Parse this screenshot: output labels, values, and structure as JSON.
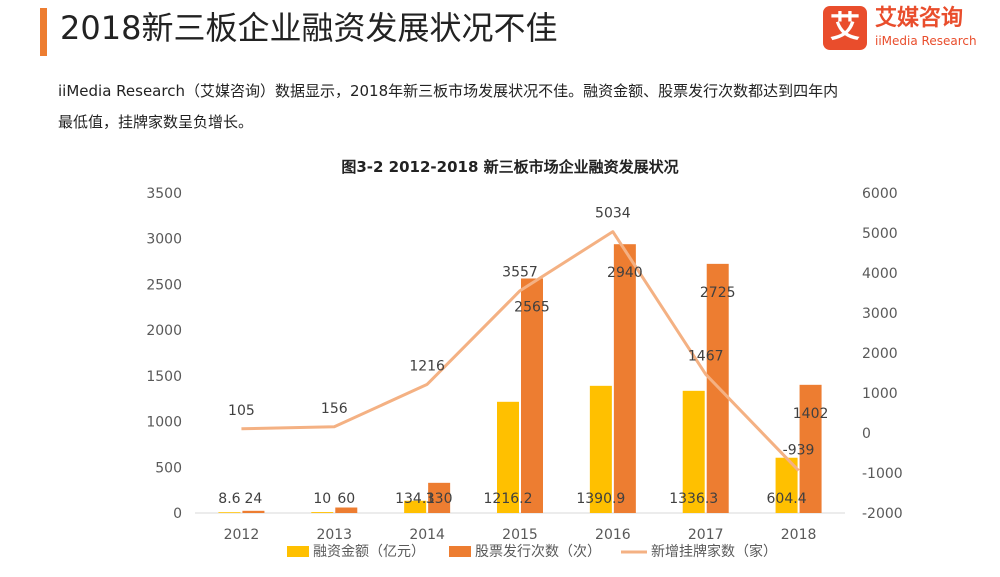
{
  "header": {
    "title": "2018新三板企业融资发展状况不佳",
    "logo": {
      "mark": "艾",
      "cn": "艾媒咨询",
      "en": "iiMedia Research"
    }
  },
  "intro_line1": "iiMedia Research（艾媒咨询）数据显示，2018年新三板市场发展状况不佳。融资金额、股票发行次数都达到四年内",
  "intro_line2": "最低值，挂牌家数呈负增长。",
  "colors": {
    "amount": "#ffc000",
    "issues": "#ed7d31",
    "listings": "#f4b183",
    "accent": "#ed7d31"
  },
  "chart_data": {
    "type": "bar",
    "title": "图3-2 2012-2018 新三板市场企业融资发展状况",
    "categories": [
      "2012",
      "2013",
      "2014",
      "2015",
      "2016",
      "2017",
      "2018"
    ],
    "series": [
      {
        "name": "融资金额（亿元）",
        "type": "bar",
        "axis": "left",
        "values": [
          8.6,
          10,
          134.1,
          1216.2,
          1390.9,
          1336.3,
          604.4
        ],
        "labels": [
          "8.6",
          "10",
          "134.1",
          "1216.2",
          "1390.9",
          "1336.3",
          "604.4"
        ]
      },
      {
        "name": "股票发行次数（次）",
        "type": "bar",
        "axis": "left",
        "values": [
          24,
          60,
          330,
          2565,
          2940,
          2725,
          1402
        ],
        "labels": [
          "24",
          "60",
          "330",
          "2565",
          "2940",
          "2725",
          "1402"
        ]
      },
      {
        "name": "新增挂牌家数（家）",
        "type": "line",
        "axis": "right",
        "values": [
          105,
          156,
          1216,
          3557,
          5034,
          1467,
          -939
        ],
        "labels": [
          "105",
          "156",
          "1216",
          "3557",
          "5034",
          "1467",
          "-939"
        ]
      }
    ],
    "ylim_left": [
      0,
      3500
    ],
    "yticks_left": [
      "3500",
      "3000",
      "2500",
      "2000",
      "1500",
      "1000",
      "500",
      "0"
    ],
    "ylim_right": [
      -2000,
      6000
    ],
    "yticks_right": [
      "6000",
      "5000",
      "4000",
      "3000",
      "2000",
      "1000",
      "0",
      "-1000",
      "-2000"
    ],
    "grid": false,
    "legend": "bottom"
  }
}
